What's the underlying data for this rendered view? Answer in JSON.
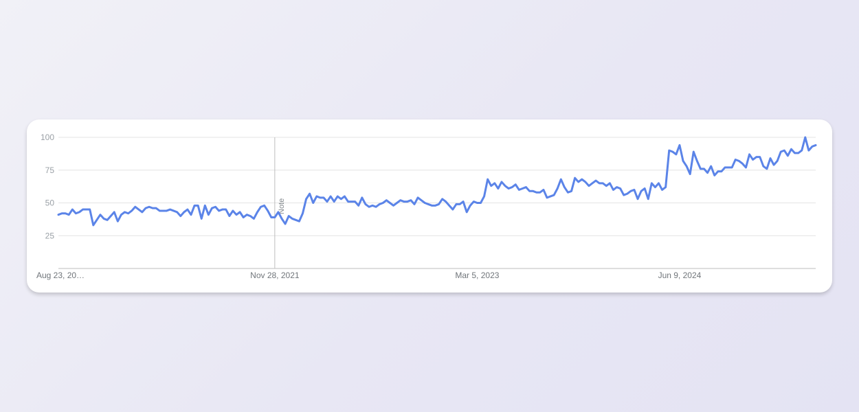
{
  "chart_data": {
    "type": "line",
    "title": "",
    "xlabel": "",
    "ylabel": "",
    "ylim": [
      0,
      100
    ],
    "yticks": [
      25,
      50,
      75,
      100
    ],
    "grid": true,
    "line_color": "#5b84e8",
    "x_tick_labels": [
      "Aug 23, 20…",
      "Nov 28, 2021",
      "Mar 5, 2023",
      "Jun 9, 2024"
    ],
    "x_tick_index": [
      0,
      62,
      120,
      178
    ],
    "annotation": {
      "label": "Note",
      "index": 62
    },
    "series": [
      {
        "values": [
          41,
          42,
          42,
          41,
          45,
          42,
          43,
          45,
          45,
          45,
          33,
          37,
          41,
          38,
          37,
          40,
          43,
          36,
          41,
          43,
          42,
          44,
          47,
          45,
          43,
          46,
          47,
          46,
          46,
          44,
          44,
          44,
          45,
          44,
          43,
          40,
          43,
          45,
          41,
          48,
          48,
          38,
          48,
          41,
          46,
          47,
          44,
          45,
          45,
          40,
          44,
          41,
          43,
          39,
          41,
          40,
          38,
          43,
          47,
          48,
          44,
          39,
          39,
          43,
          38,
          34,
          40,
          38,
          37,
          36,
          42,
          53,
          57,
          50,
          55,
          54,
          54,
          51,
          55,
          51,
          55,
          53,
          55,
          51,
          51,
          51,
          48,
          54,
          49,
          47,
          48,
          47,
          49,
          50,
          52,
          50,
          48,
          50,
          52,
          51,
          51,
          52,
          49,
          54,
          52,
          50,
          49,
          48,
          48,
          49,
          53,
          51,
          48,
          45,
          49,
          49,
          51,
          43,
          48,
          51,
          50,
          50,
          55,
          68,
          63,
          65,
          61,
          66,
          63,
          61,
          62,
          64,
          60,
          61,
          62,
          59,
          59,
          58,
          58,
          60,
          54,
          55,
          56,
          61,
          68,
          62,
          58,
          59,
          69,
          66,
          68,
          66,
          63,
          65,
          67,
          65,
          65,
          63,
          65,
          60,
          62,
          61,
          56,
          57,
          59,
          60,
          53,
          59,
          61,
          53,
          65,
          62,
          65,
          60,
          62,
          90,
          89,
          87,
          94,
          82,
          78,
          72,
          89,
          82,
          76,
          76,
          73,
          78,
          71,
          74,
          74,
          77,
          77,
          77,
          83,
          82,
          80,
          77,
          87,
          83,
          85,
          85,
          78,
          76,
          84,
          79,
          82,
          89,
          90,
          86,
          91,
          88,
          88,
          90,
          100,
          90,
          93,
          94
        ]
      }
    ]
  }
}
